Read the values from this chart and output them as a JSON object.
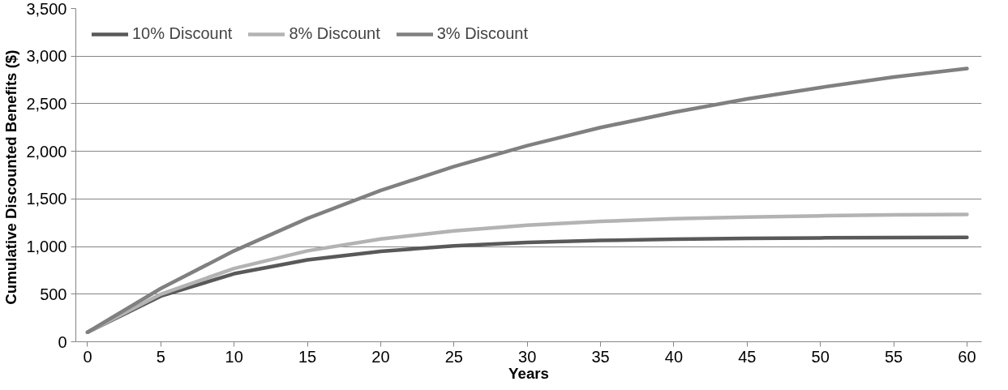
{
  "chart_data": {
    "type": "line",
    "xlabel": "Years",
    "ylabel": "Cumulative Discounted Benefits  ($)",
    "x": [
      0,
      5,
      10,
      15,
      20,
      25,
      30,
      35,
      40,
      45,
      50,
      55,
      60
    ],
    "series": [
      {
        "name": "10% Discount",
        "color": "#595959",
        "values": [
          100,
          480,
          715,
          860,
          950,
          1008,
          1043,
          1064,
          1078,
          1086,
          1091,
          1094,
          1096
        ]
      },
      {
        "name": "8% Discount",
        "color": "#b3b3b3",
        "values": [
          100,
          500,
          770,
          955,
          1080,
          1165,
          1225,
          1265,
          1292,
          1310,
          1323,
          1332,
          1338
        ]
      },
      {
        "name": "3% Discount",
        "color": "#808080",
        "values": [
          100,
          560,
          955,
          1295,
          1590,
          1840,
          2060,
          2250,
          2410,
          2550,
          2670,
          2780,
          2870
        ]
      }
    ],
    "xlim": [
      -0.8,
      61
    ],
    "ylim": [
      0,
      3500
    ],
    "xticks": [
      0,
      5,
      10,
      15,
      20,
      25,
      30,
      35,
      40,
      45,
      50,
      55,
      60
    ],
    "yticks": [
      {
        "value": 0,
        "label": "0"
      },
      {
        "value": 500,
        "label": "500"
      },
      {
        "value": 1000,
        "label": "1,000"
      },
      {
        "value": 1500,
        "label": "1,500"
      },
      {
        "value": 2000,
        "label": "2,000"
      },
      {
        "value": 2500,
        "label": "2,500"
      },
      {
        "value": 3000,
        "label": "3,000"
      },
      {
        "value": 3500,
        "label": "3,500"
      }
    ],
    "grid": "y",
    "legend": "top left",
    "marker": "none",
    "line_style": "solid"
  }
}
